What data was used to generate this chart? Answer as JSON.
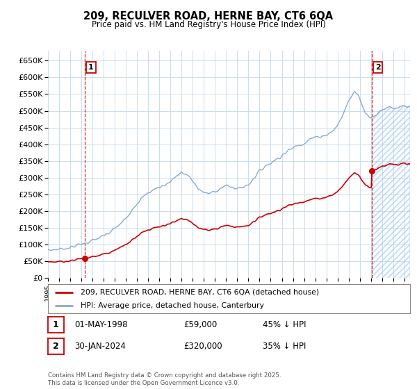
{
  "title_line1": "209, RECULVER ROAD, HERNE BAY, CT6 6QA",
  "title_line2": "Price paid vs. HM Land Registry's House Price Index (HPI)",
  "background_color": "#ffffff",
  "grid_color": "#ccddee",
  "hpi_color": "#88aace",
  "hpi_fill_color": "#aaccee",
  "price_color": "#cc0000",
  "legend_line1": "209, RECULVER ROAD, HERNE BAY, CT6 6QA (detached house)",
  "legend_line2": "HPI: Average price, detached house, Canterbury",
  "annotation1_date": "01-MAY-1998",
  "annotation1_price": "£59,000",
  "annotation1_hpi": "45% ↓ HPI",
  "annotation2_date": "30-JAN-2024",
  "annotation2_price": "£320,000",
  "annotation2_hpi": "35% ↓ HPI",
  "footer": "Contains HM Land Registry data © Crown copyright and database right 2025.\nThis data is licensed under the Open Government Licence v3.0.",
  "ylim": [
    0,
    680000
  ],
  "yticks": [
    0,
    50000,
    100000,
    150000,
    200000,
    250000,
    300000,
    350000,
    400000,
    450000,
    500000,
    550000,
    600000,
    650000
  ],
  "sale1_x": 1998.33,
  "sale1_y": 59000,
  "sale2_x": 2024.08,
  "sale2_y": 320000,
  "xlim_start": 1995.0,
  "xlim_end": 2027.5
}
